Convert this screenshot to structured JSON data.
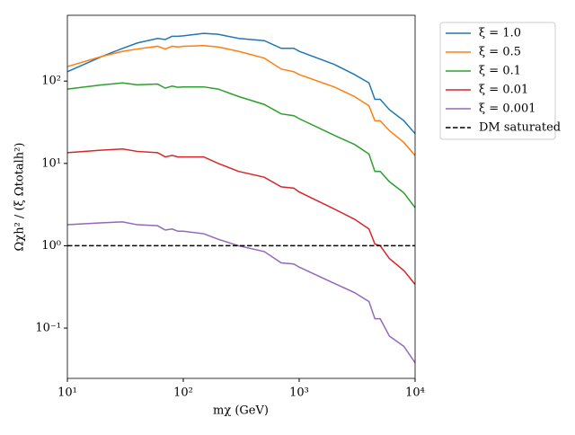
{
  "chart_data": {
    "type": "line",
    "xlabel": "mχ (GeV)",
    "ylabel": "Ωχh² / (ξ Ωtotalh²)",
    "xscale": "log",
    "yscale": "log",
    "xlim": [
      10,
      10000
    ],
    "ylim": [
      0.0245,
      630
    ],
    "xticks": [
      {
        "value": 10,
        "label": "10¹"
      },
      {
        "value": 100,
        "label": "10²"
      },
      {
        "value": 1000,
        "label": "10³"
      },
      {
        "value": 10000,
        "label": "10⁴"
      }
    ],
    "yticks": [
      {
        "value": 0.1,
        "label": "10⁻¹"
      },
      {
        "value": 1,
        "label": "10⁰"
      },
      {
        "value": 10,
        "label": "10¹"
      },
      {
        "value": 100,
        "label": "10²"
      }
    ],
    "x": [
      10,
      20,
      30,
      40,
      60,
      70,
      80,
      90,
      100,
      150,
      200,
      300,
      500,
      700,
      900,
      1000,
      2000,
      3000,
      4000,
      4500,
      5000,
      6000,
      8000,
      10000
    ],
    "series": [
      {
        "name": "ξ = 1.0",
        "color": "#1f77b4",
        "values": [
          130,
          200,
          250,
          290,
          330,
          320,
          350,
          350,
          355,
          380,
          370,
          330,
          310,
          250,
          250,
          230,
          160,
          120,
          95,
          60,
          60,
          45,
          33,
          23
        ]
      },
      {
        "name": "ξ = 0.5",
        "color": "#ff7f0e",
        "values": [
          150,
          200,
          230,
          245,
          265,
          245,
          265,
          260,
          265,
          270,
          260,
          230,
          190,
          140,
          130,
          120,
          85,
          65,
          50,
          33,
          33,
          25,
          18,
          12.5
        ]
      },
      {
        "name": "ξ = 0.1",
        "color": "#2ca02c",
        "values": [
          80,
          90,
          95,
          90,
          92,
          82,
          87,
          84,
          85,
          85,
          80,
          65,
          52,
          40,
          38,
          35,
          22,
          17,
          13,
          8,
          8,
          6,
          4.4,
          2.9
        ]
      },
      {
        "name": "ξ = 0.01",
        "color": "#d62728",
        "values": [
          13.5,
          14.5,
          15,
          14,
          13.5,
          12,
          12.5,
          12,
          12,
          12,
          10,
          8,
          6.8,
          5.2,
          5,
          4.5,
          2.8,
          2.1,
          1.6,
          1.05,
          1.0,
          0.7,
          0.5,
          0.34
        ]
      },
      {
        "name": "ξ = 0.001",
        "color": "#9467bd",
        "values": [
          1.8,
          1.9,
          1.95,
          1.8,
          1.75,
          1.55,
          1.6,
          1.5,
          1.5,
          1.4,
          1.2,
          1.0,
          0.85,
          0.62,
          0.6,
          0.55,
          0.35,
          0.27,
          0.21,
          0.13,
          0.13,
          0.08,
          0.06,
          0.038
        ]
      }
    ],
    "hline": {
      "name": "DM saturated",
      "value": 1,
      "color": "#000000"
    },
    "legend": "outside-upper-right"
  }
}
